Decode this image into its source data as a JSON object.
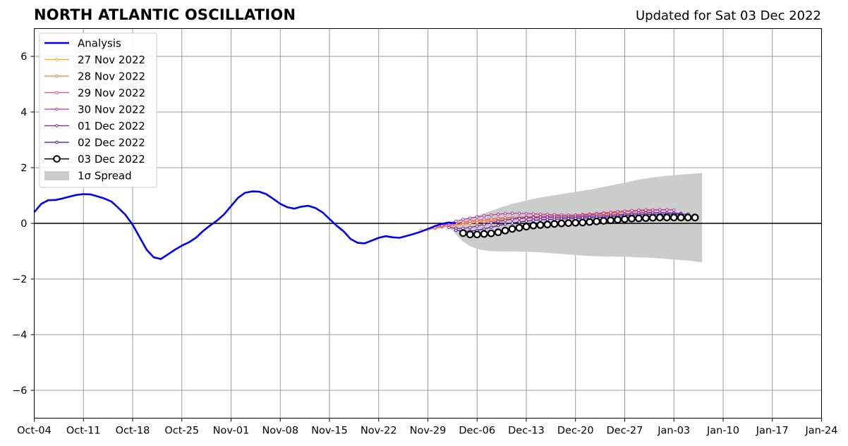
{
  "header": {
    "title": "NORTH ATLANTIC OSCILLATION",
    "updated": "Updated for Sat 03 Dec 2022"
  },
  "chart_data": {
    "type": "line",
    "title": "NORTH ATLANTIC OSCILLATION",
    "xlabel": "",
    "ylabel": "",
    "ylim": [
      -7,
      7
    ],
    "xlim": [
      "2022-10-04",
      "2023-01-24"
    ],
    "grid": true,
    "legend_position": "top-left",
    "x_ticks": [
      "Oct-04",
      "Oct-11",
      "Oct-18",
      "Oct-25",
      "Nov-01",
      "Nov-08",
      "Nov-15",
      "Nov-22",
      "Nov-29",
      "Dec-06",
      "Dec-13",
      "Dec-20",
      "Dec-27",
      "Jan-03",
      "Jan-10",
      "Jan-17",
      "Jan-24"
    ],
    "y_ticks": [
      6,
      4,
      2,
      0,
      -2,
      -4,
      -6
    ],
    "analysis": {
      "name": "Analysis",
      "color": "#0000ee",
      "start": "2022-10-04",
      "values": [
        0.4,
        0.7,
        0.83,
        0.84,
        0.89,
        0.96,
        1.02,
        1.05,
        1.04,
        0.97,
        0.89,
        0.78,
        0.55,
        0.3,
        -0.05,
        -0.5,
        -0.95,
        -1.22,
        -1.28,
        -1.12,
        -0.95,
        -0.8,
        -0.68,
        -0.52,
        -0.28,
        -0.08,
        0.1,
        0.32,
        0.62,
        0.92,
        1.1,
        1.15,
        1.14,
        1.05,
        0.88,
        0.7,
        0.58,
        0.53,
        0.6,
        0.63,
        0.55,
        0.4,
        0.16,
        -0.08,
        -0.28,
        -0.56,
        -0.7,
        -0.72,
        -0.62,
        -0.52,
        -0.46,
        -0.5,
        -0.52,
        -0.45,
        -0.38,
        -0.3,
        -0.2,
        -0.1,
        -0.02,
        0.03,
        0.0
      ]
    },
    "forecasts": [
      {
        "name": "27 Nov 2022",
        "color": "#f5a623",
        "start": "2022-11-28",
        "values": [
          -0.25,
          -0.22,
          -0.18,
          -0.14,
          -0.1,
          -0.05,
          0.0,
          0.04,
          0.07,
          0.1,
          0.12,
          0.14,
          0.16,
          0.18,
          0.19,
          0.2,
          0.21,
          0.22,
          0.23,
          0.24,
          0.25,
          0.26,
          0.27,
          0.28,
          0.29,
          0.3,
          0.31,
          0.32,
          0.33,
          0.34,
          0.35,
          0.36,
          0.37,
          0.38
        ]
      },
      {
        "name": "28 Nov 2022",
        "color": "#f07d3a",
        "start": "2022-11-29",
        "values": [
          -0.22,
          -0.18,
          -0.14,
          -0.1,
          -0.06,
          -0.03,
          0.0,
          0.03,
          0.06,
          0.09,
          0.11,
          0.13,
          0.15,
          0.17,
          0.18,
          0.19,
          0.2,
          0.21,
          0.22,
          0.23,
          0.24,
          0.26,
          0.28,
          0.3,
          0.32,
          0.34,
          0.36,
          0.38,
          0.4,
          0.42,
          0.43,
          0.44,
          0.45
        ]
      },
      {
        "name": "29 Nov 2022",
        "color": "#e0507a",
        "start": "2022-11-30",
        "values": [
          -0.15,
          -0.1,
          -0.05,
          0.0,
          0.04,
          0.08,
          0.11,
          0.14,
          0.16,
          0.18,
          0.2,
          0.21,
          0.22,
          0.23,
          0.24,
          0.25,
          0.26,
          0.27,
          0.28,
          0.29,
          0.3,
          0.32,
          0.34,
          0.36,
          0.38,
          0.4,
          0.42,
          0.44,
          0.46,
          0.47,
          0.48,
          0.48,
          0.48
        ]
      },
      {
        "name": "30 Nov 2022",
        "color": "#b8329a",
        "start": "2022-12-01",
        "values": [
          -0.08,
          0.0,
          0.08,
          0.14,
          0.19,
          0.23,
          0.27,
          0.3,
          0.33,
          0.35,
          0.36,
          0.36,
          0.35,
          0.34,
          0.33,
          0.32,
          0.31,
          0.3,
          0.29,
          0.29,
          0.3,
          0.31,
          0.33,
          0.36,
          0.39,
          0.42,
          0.44,
          0.46,
          0.47,
          0.48,
          0.48,
          0.49,
          0.49,
          0.48
        ]
      },
      {
        "name": "01 Dec 2022",
        "color": "#7b1fa2",
        "start": "2022-12-02",
        "values": [
          -0.15,
          -0.18,
          -0.18,
          -0.15,
          -0.1,
          -0.04,
          0.02,
          0.07,
          0.11,
          0.15,
          0.18,
          0.2,
          0.21,
          0.22,
          0.22,
          0.22,
          0.22,
          0.22,
          0.23,
          0.24,
          0.25,
          0.26,
          0.27,
          0.29,
          0.31,
          0.33,
          0.35,
          0.37,
          0.38,
          0.39,
          0.39,
          0.38,
          0.37,
          0.36
        ]
      },
      {
        "name": "02 Dec 2022",
        "color": "#4a0fa8",
        "start": "2022-12-03",
        "values": [
          -0.25,
          -0.28,
          -0.28,
          -0.25,
          -0.2,
          -0.14,
          -0.08,
          -0.03,
          0.01,
          0.05,
          0.08,
          0.11,
          0.13,
          0.14,
          0.15,
          0.16,
          0.17,
          0.18,
          0.19,
          0.2,
          0.21,
          0.22,
          0.24,
          0.26,
          0.28,
          0.3,
          0.31,
          0.32,
          0.33,
          0.33,
          0.33,
          0.33,
          0.33,
          0.33
        ]
      },
      {
        "name": "03 Dec 2022",
        "color": "#000000",
        "start": "2022-12-04",
        "values": [
          -0.35,
          -0.4,
          -0.4,
          -0.38,
          -0.36,
          -0.32,
          -0.26,
          -0.2,
          -0.16,
          -0.12,
          -0.08,
          -0.06,
          -0.04,
          -0.02,
          0.0,
          0.01,
          0.02,
          0.03,
          0.05,
          0.07,
          0.09,
          0.11,
          0.13,
          0.15,
          0.17,
          0.18,
          0.19,
          0.2,
          0.21,
          0.21,
          0.21,
          0.21,
          0.21,
          0.21
        ]
      }
    ],
    "spread": {
      "name": "1σ Spread",
      "color": "#cccccc",
      "start": "2022-12-02",
      "upper": [
        -0.05,
        0.05,
        0.12,
        0.2,
        0.28,
        0.36,
        0.45,
        0.54,
        0.62,
        0.7,
        0.76,
        0.82,
        0.88,
        0.93,
        0.97,
        1.01,
        1.05,
        1.09,
        1.13,
        1.17,
        1.21,
        1.26,
        1.31,
        1.36,
        1.41,
        1.46,
        1.52,
        1.57,
        1.61,
        1.65,
        1.68,
        1.71,
        1.73,
        1.75,
        1.77,
        1.79,
        1.81
      ],
      "lower": [
        -0.1,
        -0.4,
        -0.65,
        -0.82,
        -0.92,
        -0.97,
        -1.0,
        -1.01,
        -1.01,
        -1.01,
        -1.01,
        -1.02,
        -1.03,
        -1.04,
        -1.06,
        -1.08,
        -1.1,
        -1.12,
        -1.14,
        -1.16,
        -1.17,
        -1.18,
        -1.19,
        -1.19,
        -1.2,
        -1.2,
        -1.21,
        -1.22,
        -1.23,
        -1.24,
        -1.26,
        -1.28,
        -1.3,
        -1.32,
        -1.34,
        -1.37,
        -1.4
      ]
    }
  }
}
